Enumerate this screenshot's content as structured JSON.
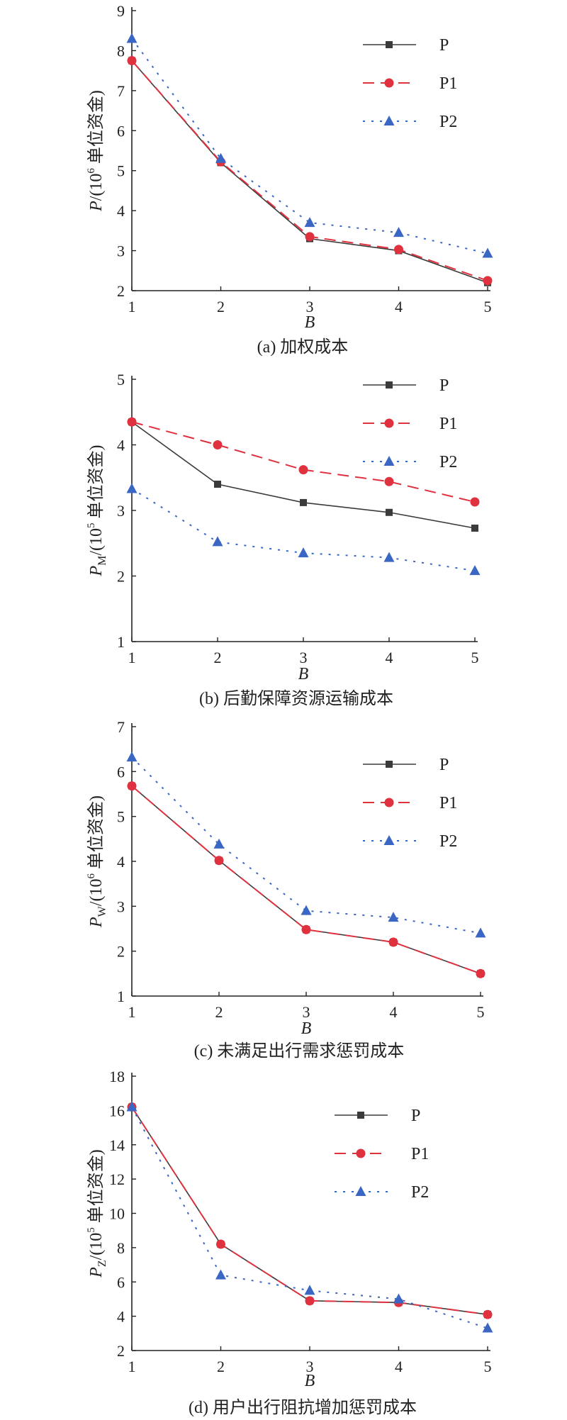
{
  "colors": {
    "P": "#3b3b3b",
    "P1": "#e0313f",
    "P2": "#3a66c4"
  },
  "chart_data": [
    {
      "type": "line",
      "caption": "(a) 加权成本",
      "ylabel_var": "P",
      "ylabel_sub": "",
      "ylabel_unit_pre": "/(10",
      "ylabel_exp": "6",
      "ylabel_unit_post": " 单位资金)",
      "xlabel": "B",
      "x": [
        1,
        2,
        3,
        4,
        5
      ],
      "ylim": [
        2,
        9
      ],
      "yticks": [
        2,
        3,
        4,
        5,
        6,
        7,
        8,
        9
      ],
      "legend_position": "top-right",
      "series": [
        {
          "name": "P",
          "marker": "square",
          "dash": "solid",
          "values": [
            7.75,
            5.2,
            3.3,
            3.0,
            2.2
          ]
        },
        {
          "name": "P1",
          "marker": "circle",
          "dash": "dashed",
          "values": [
            7.75,
            5.22,
            3.35,
            3.03,
            2.25
          ]
        },
        {
          "name": "P2",
          "marker": "triangle",
          "dash": "dotted",
          "values": [
            8.3,
            5.3,
            3.7,
            3.45,
            2.93
          ]
        }
      ]
    },
    {
      "type": "line",
      "caption": "(b) 后勤保障资源运输成本",
      "ylabel_var": "P",
      "ylabel_sub": "M",
      "ylabel_unit_pre": "/(10",
      "ylabel_exp": "5",
      "ylabel_unit_post": " 单位资金)",
      "xlabel": "B",
      "x": [
        1,
        2,
        3,
        4,
        5
      ],
      "ylim": [
        1,
        5
      ],
      "yticks": [
        1,
        2,
        3,
        4,
        5
      ],
      "legend_position": "top-right",
      "series": [
        {
          "name": "P",
          "marker": "square",
          "dash": "solid",
          "values": [
            4.35,
            3.4,
            3.12,
            2.97,
            2.73
          ]
        },
        {
          "name": "P1",
          "marker": "circle",
          "dash": "dashed",
          "values": [
            4.35,
            4.0,
            3.62,
            3.44,
            3.13
          ]
        },
        {
          "name": "P2",
          "marker": "triangle",
          "dash": "dotted",
          "values": [
            3.33,
            2.52,
            2.35,
            2.28,
            2.08
          ]
        }
      ]
    },
    {
      "type": "line",
      "caption": "(c) 未满足出行需求惩罚成本",
      "ylabel_var": "P",
      "ylabel_sub": "W",
      "ylabel_unit_pre": "/(10",
      "ylabel_exp": "6",
      "ylabel_unit_post": " 单位资金)",
      "xlabel": "B",
      "x": [
        1,
        2,
        3,
        4,
        5
      ],
      "ylim": [
        1,
        7
      ],
      "yticks": [
        1,
        2,
        3,
        4,
        5,
        6,
        7
      ],
      "legend_position": "top-right",
      "series": [
        {
          "name": "P",
          "marker": "square",
          "dash": "solid",
          "values": [
            5.68,
            4.02,
            2.48,
            2.2,
            1.5
          ]
        },
        {
          "name": "P1",
          "marker": "circle",
          "dash": "dashed",
          "values": [
            5.68,
            4.02,
            2.48,
            2.2,
            1.5
          ]
        },
        {
          "name": "P2",
          "marker": "triangle",
          "dash": "dotted",
          "values": [
            6.32,
            4.38,
            2.9,
            2.75,
            2.4
          ]
        }
      ]
    },
    {
      "type": "line",
      "caption": "(d) 用户出行阻抗增加惩罚成本",
      "ylabel_var": "P",
      "ylabel_sub": "Z",
      "ylabel_unit_pre": "/(10",
      "ylabel_exp": "5",
      "ylabel_unit_post": " 单位资金)",
      "xlabel": "B",
      "x": [
        1,
        2,
        3,
        4,
        5
      ],
      "ylim": [
        2,
        18
      ],
      "yticks": [
        2,
        4,
        6,
        8,
        10,
        12,
        14,
        16,
        18
      ],
      "legend_position": "top-right",
      "series": [
        {
          "name": "P",
          "marker": "square",
          "dash": "solid",
          "values": [
            16.2,
            8.2,
            4.9,
            4.8,
            4.1
          ]
        },
        {
          "name": "P1",
          "marker": "circle",
          "dash": "dashed",
          "values": [
            16.2,
            8.2,
            4.9,
            4.8,
            4.1
          ]
        },
        {
          "name": "P2",
          "marker": "triangle",
          "dash": "dotted",
          "values": [
            16.2,
            6.4,
            5.5,
            5.0,
            3.3
          ]
        }
      ]
    }
  ]
}
